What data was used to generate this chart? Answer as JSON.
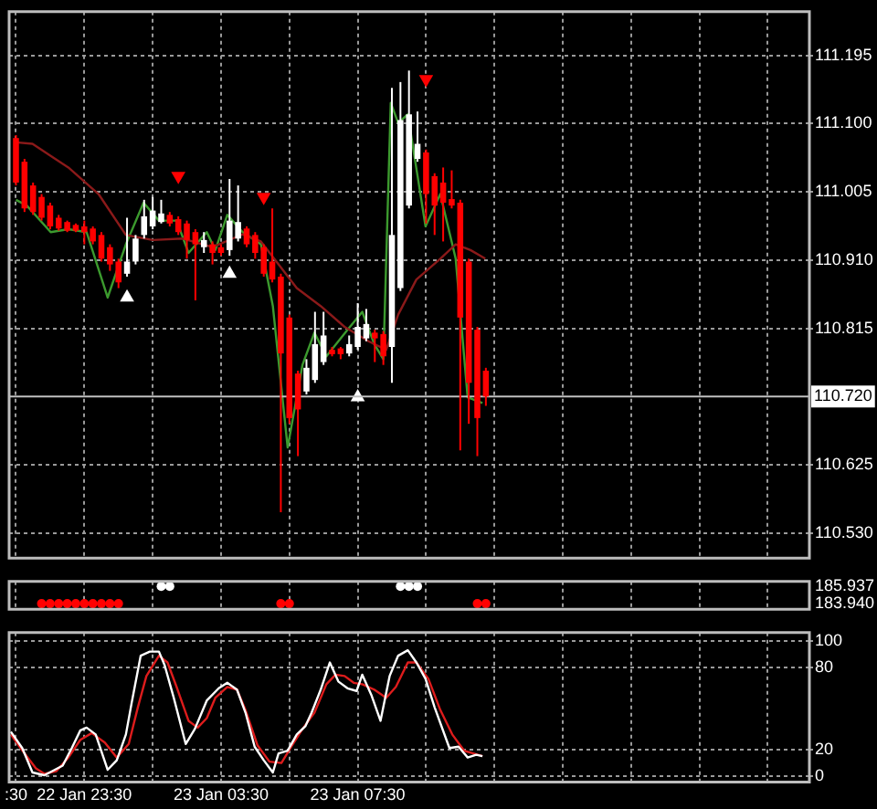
{
  "chart_data": [
    {
      "type": "candlestick",
      "xlim": [
        "--01-22T21:18",
        "--01-23T20:43"
      ],
      "ylim": [
        110.495,
        111.256
      ],
      "xticks": [
        {
          "value": "--01-22T21:30",
          "label": null
        },
        {
          "value": "--01-22T23:30",
          "label": null
        },
        {
          "value": "--01-23T01:30",
          "label": null
        },
        {
          "value": "--01-23T03:30",
          "label": null
        },
        {
          "value": "--01-23T05:30",
          "label": null
        },
        {
          "value": "--01-23T07:30",
          "label": null
        },
        {
          "value": "--01-23T09:30",
          "label": null
        },
        {
          "value": "--01-23T11:30",
          "label": null
        },
        {
          "value": "--01-23T13:30",
          "label": null
        },
        {
          "value": "--01-23T15:30",
          "label": null
        },
        {
          "value": "--01-23T17:30",
          "label": null
        },
        {
          "value": "--01-23T19:30",
          "label": null
        }
      ],
      "yticks": [
        111.195,
        {
          "value": 111.1,
          "label": "111.100"
        },
        111.005,
        {
          "value": 110.91,
          "label": "110.910"
        },
        110.815,
        110.625,
        {
          "value": 110.53,
          "label": "110.530"
        }
      ],
      "grid": true,
      "tick_labels": "y",
      "x": [
        "--01-22T21:30",
        "--01-22T21:45",
        "--01-22T22:00",
        "--01-22T22:15",
        "--01-22T22:30",
        "--01-22T22:45",
        "--01-22T23:00",
        "--01-22T23:15",
        "--01-22T23:30",
        "--01-22T23:45",
        "--01-23T00:00",
        "--01-23T00:15",
        "--01-23T00:30",
        "--01-23T00:45",
        "--01-23T01:00",
        "--01-23T01:15",
        "--01-23T01:30",
        "--01-23T01:45",
        "--01-23T02:00",
        "--01-23T02:15",
        "--01-23T02:30",
        "--01-23T02:45",
        "--01-23T03:00",
        "--01-23T03:15",
        "--01-23T03:30",
        "--01-23T03:45",
        "--01-23T04:00",
        "--01-23T04:15",
        "--01-23T04:30",
        "--01-23T04:45",
        "--01-23T05:00",
        "--01-23T05:15",
        "--01-23T05:30",
        "--01-23T05:45",
        "--01-23T06:00",
        "--01-23T06:15",
        "--01-23T06:30",
        "--01-23T06:45",
        "--01-23T07:00",
        "--01-23T07:15",
        "--01-23T07:30",
        "--01-23T07:45",
        "--01-23T08:00",
        "--01-23T08:15",
        "--01-23T08:30",
        "--01-23T08:45",
        "--01-23T09:00",
        "--01-23T09:15",
        "--01-23T09:30",
        "--01-23T09:45",
        "--01-23T10:00",
        "--01-23T10:15",
        "--01-23T10:30",
        "--01-23T10:45",
        "--01-23T11:00",
        "--01-23T11:15"
      ],
      "ohlc": [
        [
          111.08,
          111.084,
          111.014,
          111.018
        ],
        [
          111.047,
          111.051,
          110.977,
          110.982
        ],
        [
          111.014,
          111.018,
          110.973,
          110.977
        ],
        [
          110.998,
          111.002,
          110.965,
          110.969
        ],
        [
          110.986,
          110.99,
          110.953,
          110.957
        ],
        [
          110.969,
          110.973,
          110.951,
          110.954
        ],
        [
          110.963,
          110.965,
          110.949,
          110.951
        ],
        [
          110.959,
          110.961,
          110.949,
          110.951
        ],
        [
          110.957,
          110.965,
          110.932,
          110.949
        ],
        [
          110.954,
          110.957,
          110.932,
          110.936
        ],
        [
          110.945,
          110.949,
          110.908,
          110.912
        ],
        [
          110.928,
          110.932,
          110.895,
          110.904
        ],
        [
          110.908,
          110.912,
          110.871,
          110.879
        ],
        [
          110.891,
          110.969,
          110.887,
          110.908
        ],
        [
          110.908,
          110.945,
          110.904,
          110.94
        ],
        [
          110.945,
          110.994,
          110.94,
          110.971
        ],
        [
          110.957,
          110.998,
          110.953,
          110.979
        ],
        [
          110.963,
          110.994,
          110.961,
          110.975
        ],
        [
          110.973,
          110.977,
          110.957,
          110.961
        ],
        [
          110.967,
          110.971,
          110.945,
          110.949
        ],
        [
          110.961,
          110.965,
          110.912,
          110.938
        ],
        [
          110.949,
          110.953,
          110.854,
          110.932
        ],
        [
          110.928,
          110.949,
          110.92,
          110.938
        ],
        [
          110.932,
          110.936,
          110.904,
          110.92
        ],
        [
          110.928,
          110.932,
          110.916,
          110.92
        ],
        [
          110.924,
          111.023,
          110.916,
          110.965
        ],
        [
          110.94,
          111.014,
          110.936,
          110.963
        ],
        [
          110.954,
          110.957,
          110.928,
          110.932
        ],
        [
          110.945,
          110.949,
          110.912,
          110.92
        ],
        [
          110.928,
          110.932,
          110.887,
          110.891
        ],
        [
          110.908,
          110.982,
          110.879,
          110.883
        ],
        [
          110.887,
          110.891,
          110.559,
          110.78
        ],
        [
          110.83,
          110.834,
          110.682,
          110.69
        ],
        [
          110.752,
          110.756,
          110.637,
          110.702
        ],
        [
          110.727,
          110.772,
          110.723,
          110.76
        ],
        [
          110.743,
          110.838,
          110.739,
          110.793
        ],
        [
          110.768,
          110.838,
          110.764,
          110.805
        ],
        [
          110.785,
          110.789,
          110.776,
          110.779
        ],
        [
          110.787,
          110.789,
          110.772,
          110.779
        ],
        [
          110.78,
          110.805,
          110.776,
          110.793
        ],
        [
          110.789,
          110.85,
          110.785,
          110.817
        ],
        [
          110.801,
          110.842,
          110.797,
          110.821
        ],
        [
          110.809,
          110.813,
          110.768,
          110.801
        ],
        [
          110.807,
          110.811,
          110.764,
          110.776
        ],
        [
          110.789,
          111.15,
          110.739,
          110.945
        ],
        [
          110.871,
          111.158,
          110.867,
          111.105
        ],
        [
          110.986,
          111.174,
          110.982,
          111.113
        ],
        [
          111.051,
          111.117,
          111.047,
          111.072
        ],
        [
          111.06,
          111.064,
          110.961,
          111.002
        ],
        [
          111.027,
          111.031,
          110.945,
          110.986
        ],
        [
          111.018,
          111.039,
          110.936,
          110.99
        ],
        [
          110.995,
          111.035,
          110.982,
          110.986
        ],
        [
          110.99,
          110.994,
          110.645,
          110.83
        ],
        [
          110.908,
          110.912,
          110.682,
          110.739
        ],
        [
          110.813,
          110.817,
          110.637,
          110.69
        ],
        [
          110.756,
          110.76,
          110.707,
          110.72
        ]
      ],
      "colors": [
        "#ff0000",
        "#ff0000",
        "#ff0000",
        "#ff0000",
        "#ff0000",
        "#ff0000",
        "#ff0000",
        "#ff0000",
        "#ff0000",
        "#ff0000",
        "#ff0000",
        "#ff0000",
        "#ff0000",
        "#ffffff",
        "#ffffff",
        "#ffffff",
        "#ffffff",
        "#ffffff",
        "#ff0000",
        "#ff0000",
        "#ff0000",
        "#ff0000",
        "#ffffff",
        "#ff0000",
        "#ff0000",
        "#ffffff",
        "#ffffff",
        "#ff0000",
        "#ff0000",
        "#ff0000",
        "#ff0000",
        "#ff0000",
        "#ff0000",
        "#ff0000",
        "#ffffff",
        "#ffffff",
        "#ffffff",
        "#ff0000",
        "#ff0000",
        "#ffffff",
        "#ffffff",
        "#ffffff",
        "#ff0000",
        "#ff0000",
        "#ffffff",
        "#ffffff",
        "#ffffff",
        "#ffffff",
        "#ff0000",
        "#ff0000",
        "#ff0000",
        "#ff0000",
        "#ff0000",
        "#ff0000",
        "#ff0000",
        "#ff0000"
      ],
      "series": [
        {
          "type": "line",
          "color": "#8b1a1a",
          "x": [
            "--01-22T21:30",
            "--01-22T21:59",
            "--01-22T22:31",
            "--01-22T23:02",
            "--01-22T23:55",
            "--01-23T00:43",
            "--01-23T01:30",
            "--01-23T02:23",
            "--01-23T03:15",
            "--01-23T04:08",
            "--01-23T04:40",
            "--01-23T05:11",
            "--01-23T05:43",
            "--01-23T06:25",
            "--01-23T07:07",
            "--01-23T07:49",
            "--01-23T08:20",
            "--01-23T08:41",
            "--01-23T09:13",
            "--01-23T09:55",
            "--01-23T10:22",
            "--01-23T10:48",
            "--01-23T11:14"
          ],
          "values": [
            111.074,
            111.072,
            111.055,
            111.039,
            111.002,
            110.945,
            110.938,
            110.94,
            110.928,
            110.946,
            110.936,
            110.904,
            110.871,
            110.846,
            110.817,
            110.797,
            110.785,
            110.834,
            110.883,
            110.912,
            110.932,
            110.924,
            110.912
          ]
        },
        {
          "type": "line",
          "color": "#3c9a2e",
          "x": [
            "--01-22T21:30",
            "--01-22T21:49",
            "--01-22T22:31",
            "--01-22T23:02",
            "--01-22T23:34",
            "--01-23T00:11",
            "--01-23T00:43",
            "--01-23T01:14",
            "--01-23T01:41",
            "--01-23T02:12",
            "--01-23T02:33",
            "--01-23T03:05",
            "--01-23T03:20",
            "--01-23T03:41",
            "--01-23T04:08",
            "--01-23T04:40",
            "--01-23T05:01",
            "--01-23T05:27",
            "--01-23T05:53",
            "--01-23T06:14",
            "--01-23T06:35",
            "--01-23T07:12",
            "--01-23T07:38",
            "--01-23T07:59",
            "--01-23T08:15",
            "--01-23T08:28",
            "--01-23T08:41",
            "--01-23T08:58",
            "--01-23T09:29",
            "--01-23T09:55",
            "--01-23T10:22",
            "--01-23T10:43",
            "--01-23T11:09"
          ],
          "values": [
            110.994,
            110.986,
            110.949,
            110.953,
            110.949,
            110.858,
            110.932,
            110.99,
            110.965,
            110.965,
            110.92,
            110.949,
            110.924,
            110.973,
            110.949,
            110.932,
            110.846,
            110.649,
            110.764,
            110.809,
            110.776,
            110.813,
            110.838,
            110.793,
            110.772,
            111.129,
            111.101,
            111.113,
            110.957,
            111.002,
            110.912,
            110.719,
            110.711
          ]
        },
        {
          "type": "scatter",
          "color": "#ffffff",
          "marker": "triangle",
          "x": [
            "--01-23T00:45",
            "--01-23T03:45",
            "--01-23T07:30"
          ],
          "values": [
            110.858,
            110.891,
            110.719
          ]
        },
        {
          "type": "scatter",
          "color": "#ff0000",
          "marker": "triangle",
          "x": [
            "--01-23T02:15",
            "--01-23T04:45",
            "--01-23T09:30"
          ],
          "values": [
            111.027,
            110.998,
            111.162
          ]
        }
      ],
      "ref_lines": [
        {
          "axis": "y",
          "value": 110.72,
          "label": "110.720",
          "color": "#c0c0c0"
        }
      ]
    },
    {
      "type": "scatter",
      "xlim": [
        "--01-22T21:18",
        "--01-23T20:43"
      ],
      "ylim": [
        183.3,
        186.5
      ],
      "xticks": [
        {
          "value": "--01-22T21:30",
          "label": null
        },
        {
          "value": "--01-22T23:30",
          "label": null
        },
        {
          "value": "--01-23T01:30",
          "label": null
        },
        {
          "value": "--01-23T03:30",
          "label": null
        },
        {
          "value": "--01-23T05:30",
          "label": null
        },
        {
          "value": "--01-23T07:30",
          "label": null
        },
        {
          "value": "--01-23T09:30",
          "label": null
        },
        {
          "value": "--01-23T11:30",
          "label": null
        },
        {
          "value": "--01-23T13:30",
          "label": null
        },
        {
          "value": "--01-23T15:30",
          "label": null
        },
        {
          "value": "--01-23T17:30",
          "label": null
        },
        {
          "value": "--01-23T19:30",
          "label": null
        }
      ],
      "yticks": [
        {
          "value": 185.9371,
          "label": "185.937"
        },
        {
          "value": 183.94,
          "label": "183.940"
        }
      ],
      "grid": "x",
      "tick_labels": "y",
      "marker": "circle",
      "series": [
        {
          "color": "#ffffff",
          "x": [
            "--01-23T01:45",
            "--01-23T02:00",
            "--01-23T08:45",
            "--01-23T09:00",
            "--01-23T09:15"
          ],
          "values": [
            185.9371,
            185.9371,
            185.9371,
            185.9371,
            185.9371
          ]
        },
        {
          "color": "#ff0000",
          "x": [
            "--01-22T22:15",
            "--01-22T22:30",
            "--01-22T22:45",
            "--01-22T23:00",
            "--01-22T23:15",
            "--01-22T23:30",
            "--01-22T23:45",
            "--01-23T00:00",
            "--01-23T00:15",
            "--01-23T00:30",
            "--01-23T05:15",
            "--01-23T05:30",
            "--01-23T11:00",
            "--01-23T11:15"
          ],
          "values": [
            183.94,
            183.94,
            183.94,
            183.94,
            183.94,
            183.94,
            183.94,
            183.94,
            183.94,
            183.94,
            183.94,
            183.94,
            183.94,
            183.94
          ]
        }
      ]
    },
    {
      "type": "line",
      "xlim": [
        "--01-22T21:18",
        "--01-23T20:43"
      ],
      "ylim": [
        -4,
        106
      ],
      "xticks": [
        {
          "value": "--01-22T21:30",
          "label": ":30"
        },
        {
          "value": "--01-22T23:30",
          "label": "22 Jan 23:30"
        },
        {
          "value": "--01-23T01:30",
          "label": null
        },
        {
          "value": "--01-23T03:30",
          "label": "23 Jan 03:30"
        },
        {
          "value": "--01-23T05:30",
          "label": null
        },
        {
          "value": "--01-23T07:30",
          "label": "23 Jan 07:30"
        },
        {
          "value": "--01-23T09:30",
          "label": null
        },
        {
          "value": "--01-23T11:30",
          "label": null
        },
        {
          "value": "--01-23T13:30",
          "label": null
        },
        {
          "value": "--01-23T15:30",
          "label": null
        },
        {
          "value": "--01-23T17:30",
          "label": null
        },
        {
          "value": "--01-23T19:30",
          "label": null
        }
      ],
      "yticks": [
        0,
        20,
        80,
        100
      ],
      "grid": true,
      "series": [
        {
          "color": "#ffffff",
          "x": [
            "--01-22T21:21",
            "--01-22T21:41",
            "--01-22T21:59",
            "--01-22T22:20",
            "--01-22T22:52",
            "--01-22T23:08",
            "--01-22T23:23",
            "--01-22T23:34",
            "--01-22T23:50",
            "--01-23T00:11",
            "--01-23T00:27",
            "--01-23T00:43",
            "--01-23T00:53",
            "--01-23T01:09",
            "--01-23T01:25",
            "--01-23T01:41",
            "--01-23T01:51",
            "--01-23T02:07",
            "--01-23T02:28",
            "--01-23T02:44",
            "--01-23T03:05",
            "--01-23T03:26",
            "--01-23T03:41",
            "--01-23T03:58",
            "--01-23T04:13",
            "--01-23T04:29",
            "--01-23T04:45",
            "--01-23T05:01",
            "--01-23T05:11",
            "--01-23T05:27",
            "--01-23T05:43",
            "--01-23T05:58",
            "--01-23T06:09",
            "--01-23T06:25",
            "--01-23T06:41",
            "--01-23T06:56",
            "--01-23T07:12",
            "--01-23T07:28",
            "--01-23T07:38",
            "--01-23T07:54",
            "--01-23T08:10",
            "--01-23T08:26",
            "--01-23T08:41",
            "--01-23T08:58",
            "--01-23T09:13",
            "--01-23T09:29",
            "--01-23T09:45",
            "--01-23T10:11",
            "--01-23T10:27",
            "--01-23T10:43",
            "--01-23T10:58",
            "--01-23T11:09"
          ],
          "values": [
            33,
            21,
            3,
            1,
            8,
            21,
            34,
            36,
            31,
            5,
            12,
            31,
            54,
            89,
            92,
            92,
            82,
            58,
            24,
            35,
            56,
            65,
            69,
            64,
            47,
            22,
            12,
            3,
            17,
            19,
            31,
            37,
            47,
            64,
            84,
            70,
            65,
            63,
            75,
            60,
            41,
            74,
            89,
            93,
            84,
            72,
            51,
            21,
            22,
            14,
            16,
            15
          ]
        },
        {
          "color": "#dd1c1c",
          "x": [
            "--01-22T21:21",
            "--01-22T21:38",
            "--01-22T22:05",
            "--01-22T22:20",
            "--01-22T22:41",
            "--01-22T23:02",
            "--01-22T23:23",
            "--01-22T23:43",
            "--01-23T00:06",
            "--01-23T00:27",
            "--01-23T00:48",
            "--01-23T01:04",
            "--01-23T01:19",
            "--01-23T01:41",
            "--01-23T01:56",
            "--01-23T02:12",
            "--01-23T02:33",
            "--01-23T02:49",
            "--01-23T03:05",
            "--01-23T03:20",
            "--01-23T03:41",
            "--01-23T03:58",
            "--01-23T04:13",
            "--01-23T04:34",
            "--01-23T04:55",
            "--01-23T05:16",
            "--01-23T05:32",
            "--01-23T05:53",
            "--01-23T06:14",
            "--01-23T06:35",
            "--01-23T06:51",
            "--01-23T07:07",
            "--01-23T07:23",
            "--01-23T07:38",
            "--01-23T07:59",
            "--01-23T08:20",
            "--01-23T08:37",
            "--01-23T08:58",
            "--01-23T09:13",
            "--01-23T09:34",
            "--01-23T09:55",
            "--01-23T10:16",
            "--01-23T10:37",
            "--01-23T10:53",
            "--01-23T11:09"
          ],
          "values": [
            31,
            21,
            6,
            2,
            4,
            14,
            27,
            32,
            25,
            14,
            24,
            51,
            74,
            89,
            84,
            66,
            41,
            36,
            43,
            58,
            66,
            64,
            49,
            23,
            11,
            10,
            21,
            35,
            47,
            68,
            75,
            74,
            69,
            68,
            64,
            58,
            66,
            84,
            84,
            72,
            49,
            31,
            19,
            17,
            15
          ]
        }
      ]
    }
  ]
}
